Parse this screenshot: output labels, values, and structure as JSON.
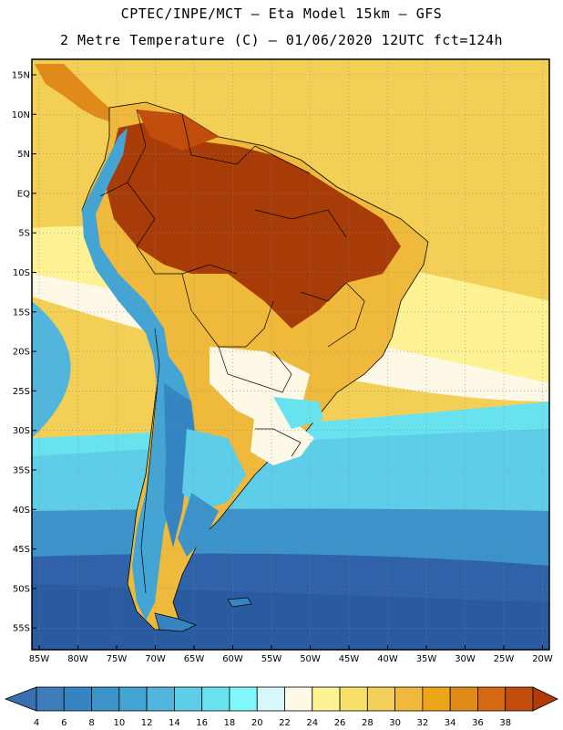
{
  "header": {
    "line1": "CPTEC/INPE/MCT –  Eta Model 15km – GFS",
    "line2": "2 Metre Temperature (C) – 01/06/2020 12UTC fct=124h"
  },
  "map": {
    "lat_labels": [
      "15N",
      "10N",
      "5N",
      "EQ",
      "5S",
      "10S",
      "15S",
      "20S",
      "25S",
      "30S",
      "35S",
      "40S",
      "45S",
      "50S",
      "55S"
    ],
    "lon_labels": [
      "85W",
      "80W",
      "75W",
      "70W",
      "65W",
      "60W",
      "55W",
      "50W",
      "45W",
      "40W",
      "35W",
      "30W",
      "25W",
      "20W"
    ]
  },
  "colorbar": {
    "labels": [
      "4",
      "6",
      "8",
      "10",
      "12",
      "14",
      "16",
      "18",
      "20",
      "22",
      "24",
      "26",
      "28",
      "30",
      "32",
      "34",
      "36",
      "38"
    ],
    "colors": [
      "#3f7cba",
      "#3585c2",
      "#3c93c9",
      "#44a4d3",
      "#52b6dc",
      "#5ecde7",
      "#69e2ef",
      "#7ff7fb",
      "#d7f7fb",
      "#fdf9e6",
      "#fdf395",
      "#f8e06a",
      "#f4d05a",
      "#efb93c",
      "#eea51a",
      "#e08a1a",
      "#d56913",
      "#c24c0b"
    ],
    "low_arrow_color": "#3a6fb0",
    "high_arrow_color": "#b03a08"
  },
  "palette": {
    "ocean_warm": "#f3cf55",
    "ocean_mid": "#fdf395",
    "ocean_cool": "#5ecde7",
    "ocean_cold": "#3c8fc8",
    "ocean_coldest": "#2f62a8",
    "land_hot": "#a83c08",
    "land_warm": "#d56913",
    "land_mild": "#efb93c",
    "land_cool": "#fdf9e6",
    "andes": "#44a4d3"
  }
}
